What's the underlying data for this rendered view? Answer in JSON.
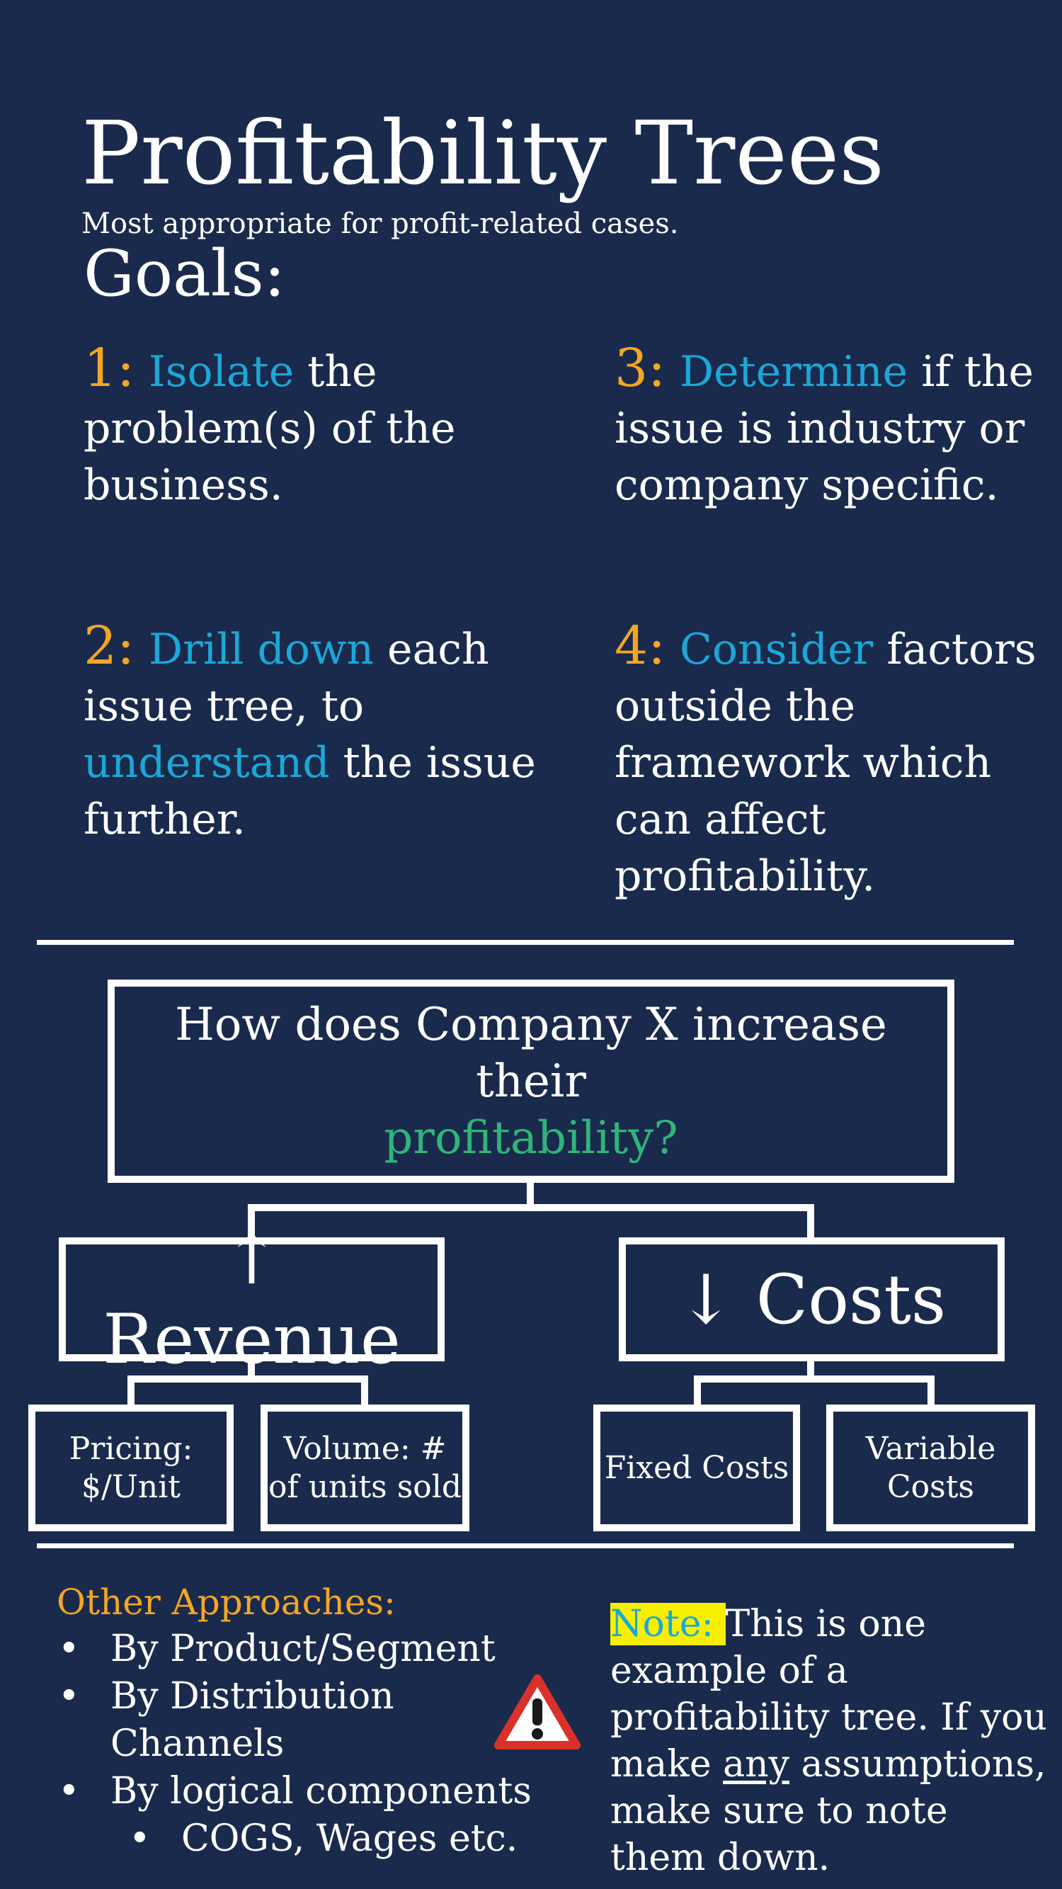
{
  "header": {
    "title": "Profitability Trees",
    "subtitle": "Most appropriate for profit-related cases.",
    "goals_heading": "Goals:"
  },
  "goals": [
    {
      "num": "1:",
      "segments": [
        {
          "text": "Isolate",
          "color": "blue"
        },
        {
          "text": " the problem(s) of the business.",
          "color": "white"
        }
      ]
    },
    {
      "num": "3:",
      "segments": [
        {
          "text": "Determine",
          "color": "blue"
        },
        {
          "text": " if the issue is industry or company specific.",
          "color": "white"
        }
      ]
    },
    {
      "num": "2:",
      "segments": [
        {
          "text": "Drill down",
          "color": "blue"
        },
        {
          "text": " each issue tree, to ",
          "color": "white"
        },
        {
          "text": "understand",
          "color": "blue"
        },
        {
          "text": " the issue further.",
          "color": "white"
        }
      ]
    },
    {
      "num": "4:",
      "segments": [
        {
          "text": "Consider",
          "color": "blue"
        },
        {
          "text": " factors outside the framework which can affect profitability.",
          "color": "white"
        }
      ]
    }
  ],
  "tree": {
    "question_line1": "How does Company X increase their",
    "question_highlight": "profitability?",
    "revenue": "↑ Revenue",
    "costs": "↓ Costs",
    "revenue_children": [
      "Pricing: $/Unit",
      "Volume: # of units sold"
    ],
    "cost_children": [
      "Fixed Costs",
      "Variable Costs"
    ]
  },
  "other_approaches": {
    "heading": "Other Approaches:",
    "items": [
      "By Product/Segment",
      "By Distribution Channels",
      "By logical components"
    ],
    "sub_items": [
      "COGS, Wages etc."
    ]
  },
  "note": {
    "label": "Note: ",
    "text_before": "This is one example of a profitability tree. If you make ",
    "underlined": "any",
    "text_after": " assumptions, make sure to note them down."
  },
  "colors": {
    "background": "#1a2a4c",
    "accent_blue": "#1aa8d8",
    "accent_orange": "#f5a623",
    "accent_green": "#2fb57a",
    "highlight_yellow": "#f6f000",
    "warning_red": "#d9322a"
  },
  "icons": {
    "warning": "warning-triangle-icon"
  }
}
